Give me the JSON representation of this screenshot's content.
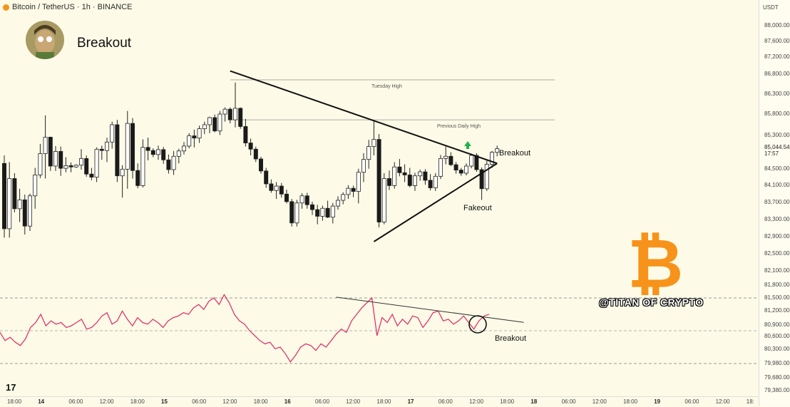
{
  "header": {
    "symbol_line": "Bitcoin / TetherUS · 1h · BINANCE",
    "headline": "Breakout"
  },
  "annotations": {
    "tuesday_high": "Tuesday High",
    "previous_daily_high": "Previous Daily High",
    "breakout_price": "Breakout",
    "fakeout": "Fakeout",
    "breakout_rsi": "Breakout"
  },
  "watermark": {
    "handle": "@TITAN OF CRYPTO",
    "logo_symbol": "₿",
    "logo_color": "#f7931a"
  },
  "price_axis": {
    "currency": "USDT",
    "ticks": [
      "88,000.00",
      "87,600.00",
      "87,200.00",
      "86,800.00",
      "86,300.00",
      "85,800.00",
      "85,300.00",
      "84,500.00",
      "84,100.00",
      "83,700.00",
      "83,300.00",
      "82,900.00",
      "82,500.00",
      "82,100.00",
      "81,800.00",
      "81,500.00",
      "81,200.00",
      "80,900.00",
      "80,600.00",
      "80,300.00",
      "79,980.00",
      "79,680.00",
      "79,380.00"
    ],
    "current_price": "85,044.54",
    "countdown": "17:57"
  },
  "time_axis": {
    "ticks": [
      "18:00",
      "14",
      "06:00",
      "12:00",
      "18:00",
      "15",
      "06:00",
      "12:00",
      "18:00",
      "16",
      "06:00",
      "12:00",
      "18:00",
      "17",
      "06:00",
      "12:00",
      "18:00",
      "18",
      "06:00",
      "12:00",
      "18:00",
      "19",
      "06:00",
      "12:00",
      "18:"
    ],
    "bold_ticks": [
      "14",
      "15",
      "16",
      "17",
      "18",
      "19"
    ]
  },
  "branding": {
    "tv_logo": "17"
  },
  "chart_data": [
    {
      "type": "candlestick",
      "title": "Breakout",
      "series_name": "BTC/USDT 1h",
      "ylim": [
        79380,
        88200
      ],
      "candles": [
        {
          "o": 84620,
          "h": 84800,
          "l": 82950,
          "c": 83150
        },
        {
          "o": 83150,
          "h": 84650,
          "l": 82950,
          "c": 84280
        },
        {
          "o": 84280,
          "h": 84400,
          "l": 83520,
          "c": 83600
        },
        {
          "o": 83600,
          "h": 84050,
          "l": 83300,
          "c": 83800
        },
        {
          "o": 83800,
          "h": 83920,
          "l": 83020,
          "c": 83210
        },
        {
          "o": 83210,
          "h": 83940,
          "l": 83100,
          "c": 83890
        },
        {
          "o": 83890,
          "h": 84520,
          "l": 83600,
          "c": 84360
        },
        {
          "o": 84360,
          "h": 85060,
          "l": 84290,
          "c": 84840
        },
        {
          "o": 84840,
          "h": 85700,
          "l": 84280,
          "c": 85210
        },
        {
          "o": 85210,
          "h": 85220,
          "l": 84450,
          "c": 84560
        },
        {
          "o": 84560,
          "h": 85010,
          "l": 84450,
          "c": 84890
        },
        {
          "o": 84890,
          "h": 85000,
          "l": 84340,
          "c": 84510
        },
        {
          "o": 84510,
          "h": 84760,
          "l": 84420,
          "c": 84570
        },
        {
          "o": 84570,
          "h": 84640,
          "l": 84420,
          "c": 84540
        },
        {
          "o": 84540,
          "h": 84600,
          "l": 84520,
          "c": 84580
        },
        {
          "o": 84580,
          "h": 84940,
          "l": 84480,
          "c": 84730
        },
        {
          "o": 84730,
          "h": 84800,
          "l": 84320,
          "c": 84380
        },
        {
          "o": 84380,
          "h": 84520,
          "l": 84240,
          "c": 84310
        },
        {
          "o": 84310,
          "h": 84980,
          "l": 84200,
          "c": 84940
        },
        {
          "o": 84940,
          "h": 85020,
          "l": 84700,
          "c": 84910
        },
        {
          "o": 84910,
          "h": 85200,
          "l": 84650,
          "c": 85100
        },
        {
          "o": 85100,
          "h": 85560,
          "l": 84950,
          "c": 85490
        },
        {
          "o": 85490,
          "h": 85600,
          "l": 84200,
          "c": 84340
        },
        {
          "o": 84340,
          "h": 84580,
          "l": 83850,
          "c": 84490
        },
        {
          "o": 84490,
          "h": 85800,
          "l": 84050,
          "c": 85520
        },
        {
          "o": 85520,
          "h": 85640,
          "l": 84280,
          "c": 84460
        },
        {
          "o": 84460,
          "h": 84620,
          "l": 84060,
          "c": 84120
        },
        {
          "o": 84120,
          "h": 85160,
          "l": 84080,
          "c": 84980
        },
        {
          "o": 84980,
          "h": 85200,
          "l": 84690,
          "c": 84910
        },
        {
          "o": 84910,
          "h": 84960,
          "l": 84760,
          "c": 84820
        },
        {
          "o": 84820,
          "h": 85020,
          "l": 84700,
          "c": 84930
        },
        {
          "o": 84930,
          "h": 84990,
          "l": 84610,
          "c": 84700
        },
        {
          "o": 84700,
          "h": 84820,
          "l": 84390,
          "c": 84480
        },
        {
          "o": 84480,
          "h": 84900,
          "l": 84360,
          "c": 84780
        },
        {
          "o": 84780,
          "h": 84950,
          "l": 84620,
          "c": 84900
        },
        {
          "o": 84900,
          "h": 85100,
          "l": 84820,
          "c": 85010
        },
        {
          "o": 85010,
          "h": 85300,
          "l": 84960,
          "c": 85240
        },
        {
          "o": 85240,
          "h": 85380,
          "l": 84980,
          "c": 85190
        },
        {
          "o": 85190,
          "h": 85470,
          "l": 85080,
          "c": 85400
        },
        {
          "o": 85400,
          "h": 85560,
          "l": 85280,
          "c": 85490
        },
        {
          "o": 85490,
          "h": 85670,
          "l": 85300,
          "c": 85650
        },
        {
          "o": 85650,
          "h": 85720,
          "l": 85320,
          "c": 85350
        },
        {
          "o": 85350,
          "h": 85800,
          "l": 85260,
          "c": 85730
        },
        {
          "o": 85730,
          "h": 85880,
          "l": 85560,
          "c": 85840
        },
        {
          "o": 85840,
          "h": 85880,
          "l": 85520,
          "c": 85600
        },
        {
          "o": 85600,
          "h": 86440,
          "l": 85430,
          "c": 85860
        },
        {
          "o": 85860,
          "h": 85880,
          "l": 85400,
          "c": 85450
        },
        {
          "o": 85450,
          "h": 85620,
          "l": 85000,
          "c": 85080
        },
        {
          "o": 85080,
          "h": 85180,
          "l": 84800,
          "c": 84940
        },
        {
          "o": 84940,
          "h": 85000,
          "l": 84650,
          "c": 84720
        },
        {
          "o": 84720,
          "h": 84770,
          "l": 84390,
          "c": 84450
        },
        {
          "o": 84450,
          "h": 84520,
          "l": 84070,
          "c": 84160
        },
        {
          "o": 84160,
          "h": 84260,
          "l": 83960,
          "c": 84010
        },
        {
          "o": 84010,
          "h": 84200,
          "l": 83820,
          "c": 84110
        },
        {
          "o": 84110,
          "h": 84180,
          "l": 83850,
          "c": 83930
        },
        {
          "o": 83930,
          "h": 84030,
          "l": 83720,
          "c": 83760
        },
        {
          "o": 83760,
          "h": 83820,
          "l": 83200,
          "c": 83280
        },
        {
          "o": 83280,
          "h": 83800,
          "l": 83200,
          "c": 83730
        },
        {
          "o": 83730,
          "h": 83950,
          "l": 83600,
          "c": 83890
        },
        {
          "o": 83890,
          "h": 83960,
          "l": 83600,
          "c": 83690
        },
        {
          "o": 83690,
          "h": 83760,
          "l": 83460,
          "c": 83580
        },
        {
          "o": 83580,
          "h": 83690,
          "l": 83250,
          "c": 83430
        },
        {
          "o": 83430,
          "h": 83670,
          "l": 83330,
          "c": 83610
        },
        {
          "o": 83610,
          "h": 83780,
          "l": 83390,
          "c": 83410
        },
        {
          "o": 83410,
          "h": 83730,
          "l": 83270,
          "c": 83660
        },
        {
          "o": 83660,
          "h": 83880,
          "l": 83580,
          "c": 83790
        },
        {
          "o": 83790,
          "h": 83970,
          "l": 83700,
          "c": 83920
        },
        {
          "o": 83920,
          "h": 84130,
          "l": 83820,
          "c": 84060
        },
        {
          "o": 84060,
          "h": 84120,
          "l": 83860,
          "c": 83990
        },
        {
          "o": 83990,
          "h": 84500,
          "l": 83720,
          "c": 84420
        },
        {
          "o": 84420,
          "h": 84850,
          "l": 84200,
          "c": 84710
        },
        {
          "o": 84710,
          "h": 85150,
          "l": 84500,
          "c": 85000
        },
        {
          "o": 85000,
          "h": 85570,
          "l": 84800,
          "c": 85160
        },
        {
          "o": 85160,
          "h": 85280,
          "l": 83180,
          "c": 83300
        },
        {
          "o": 83300,
          "h": 84400,
          "l": 83250,
          "c": 84280
        },
        {
          "o": 84280,
          "h": 84460,
          "l": 84020,
          "c": 84120
        },
        {
          "o": 84120,
          "h": 84650,
          "l": 84050,
          "c": 84540
        },
        {
          "o": 84540,
          "h": 84720,
          "l": 84330,
          "c": 84410
        },
        {
          "o": 84410,
          "h": 84600,
          "l": 84200,
          "c": 84360
        },
        {
          "o": 84360,
          "h": 84520,
          "l": 84080,
          "c": 84120
        },
        {
          "o": 84120,
          "h": 84410,
          "l": 84000,
          "c": 84340
        },
        {
          "o": 84340,
          "h": 84480,
          "l": 84230,
          "c": 84430
        },
        {
          "o": 84430,
          "h": 84490,
          "l": 84140,
          "c": 84240
        },
        {
          "o": 84240,
          "h": 84380,
          "l": 84010,
          "c": 84070
        },
        {
          "o": 84070,
          "h": 84400,
          "l": 84000,
          "c": 84330
        },
        {
          "o": 84330,
          "h": 84810,
          "l": 84270,
          "c": 84730
        },
        {
          "o": 84730,
          "h": 85000,
          "l": 84600,
          "c": 84780
        },
        {
          "o": 84780,
          "h": 84870,
          "l": 84560,
          "c": 84590
        },
        {
          "o": 84590,
          "h": 84650,
          "l": 84390,
          "c": 84470
        },
        {
          "o": 84470,
          "h": 84520,
          "l": 84340,
          "c": 84400
        },
        {
          "o": 84400,
          "h": 84620,
          "l": 84350,
          "c": 84560
        },
        {
          "o": 84560,
          "h": 84840,
          "l": 84510,
          "c": 84800
        },
        {
          "o": 84800,
          "h": 84850,
          "l": 84430,
          "c": 84480
        },
        {
          "o": 84480,
          "h": 84530,
          "l": 83800,
          "c": 84050
        },
        {
          "o": 84050,
          "h": 84680,
          "l": 84000,
          "c": 84600
        },
        {
          "o": 84600,
          "h": 84900,
          "l": 84520,
          "c": 84870
        },
        {
          "o": 84870,
          "h": 85020,
          "l": 84780,
          "c": 84950
        }
      ],
      "trendlines": [
        {
          "label": "upper",
          "from_index": 44,
          "from_price": 86700,
          "to_index": 96,
          "to_price": 84620
        },
        {
          "label": "lower",
          "from_index": 72,
          "from_price": 82860,
          "to_index": 96,
          "to_price": 84620
        }
      ],
      "levels": [
        {
          "name": "Tuesday High",
          "price": 86500
        },
        {
          "name": "Previous Daily High",
          "price": 85600
        }
      ]
    },
    {
      "type": "line",
      "series_name": "RSI",
      "reference_levels": [
        70,
        50,
        30
      ],
      "values": [
        49,
        44,
        46,
        43,
        41,
        45,
        52,
        55,
        60,
        53,
        56,
        54,
        55,
        52,
        53,
        55,
        57,
        51,
        52,
        55,
        59,
        61,
        54,
        56,
        62,
        57,
        53,
        58,
        55,
        54,
        57,
        55,
        52,
        56,
        58,
        59,
        61,
        60,
        64,
        66,
        63,
        68,
        70,
        66,
        72,
        67,
        60,
        56,
        54,
        50,
        47,
        44,
        42,
        43,
        39,
        40,
        36,
        31,
        35,
        40,
        42,
        41,
        38,
        42,
        40,
        44,
        48,
        51,
        49,
        56,
        60,
        64,
        67,
        70,
        47,
        58,
        55,
        60,
        53,
        57,
        54,
        59,
        58,
        52,
        56,
        61,
        62,
        56,
        57,
        54,
        56,
        59,
        55,
        51,
        56,
        59,
        60
      ],
      "trendline": {
        "from_index": 66,
        "from_value": 70.5,
        "to_index": 100,
        "to_value": 56
      }
    }
  ]
}
